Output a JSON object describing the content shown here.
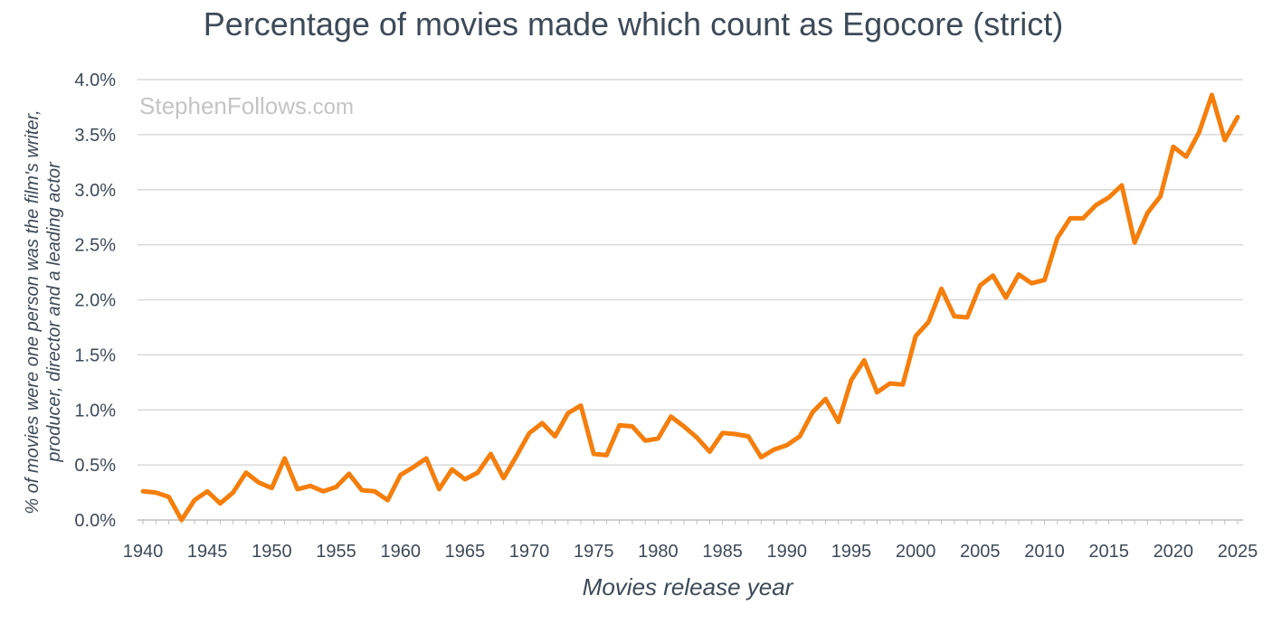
{
  "chart_data": {
    "type": "line",
    "title": "Percentage of movies made which count as Egocore (strict)",
    "watermark_main": "StephenFollows",
    "watermark_suffix": ".com",
    "xlabel": "Movies release year",
    "ylabel_line1": "% of  movies were one person was the film's writer,",
    "ylabel_line2": "producer, director and a leading actor",
    "xlim": [
      1940,
      2025
    ],
    "ylim": [
      0,
      4.0
    ],
    "x_ticks": [
      "1940",
      "1945",
      "1950",
      "1955",
      "1960",
      "1965",
      "1970",
      "1975",
      "1980",
      "1985",
      "1990",
      "1995",
      "2000",
      "2005",
      "2010",
      "2015",
      "2020",
      "2025"
    ],
    "y_ticks": [
      "0.0%",
      "0.5%",
      "1.0%",
      "1.5%",
      "2.0%",
      "2.5%",
      "3.0%",
      "3.5%",
      "4.0%"
    ],
    "grid": "horizontal",
    "color": "#f57e0c",
    "series": [
      {
        "x": [
          1940,
          1941,
          1942,
          1943,
          1944,
          1945,
          1946,
          1947,
          1948,
          1949,
          1950,
          1951,
          1952,
          1953,
          1954,
          1955,
          1956,
          1957,
          1958,
          1959,
          1960,
          1961,
          1962,
          1963,
          1964,
          1965,
          1966,
          1967,
          1968,
          1969,
          1970,
          1971,
          1972,
          1973,
          1974,
          1975,
          1976,
          1977,
          1978,
          1979,
          1980,
          1981,
          1982,
          1983,
          1984,
          1985,
          1986,
          1987,
          1988,
          1989,
          1990,
          1991,
          1992,
          1993,
          1994,
          1995,
          1996,
          1997,
          1998,
          1999,
          2000,
          2001,
          2002,
          2003,
          2004,
          2005,
          2006,
          2007,
          2008,
          2009,
          2010,
          2011,
          2012,
          2013,
          2014,
          2015,
          2016,
          2017,
          2018,
          2019,
          2020,
          2021,
          2022,
          2023,
          2024,
          2025
        ],
        "values": [
          0.26,
          0.25,
          0.21,
          0.0,
          0.18,
          0.26,
          0.15,
          0.25,
          0.43,
          0.34,
          0.29,
          0.56,
          0.28,
          0.31,
          0.26,
          0.3,
          0.42,
          0.27,
          0.26,
          0.18,
          0.41,
          0.48,
          0.56,
          0.28,
          0.46,
          0.37,
          0.43,
          0.6,
          0.38,
          0.58,
          0.79,
          0.88,
          0.76,
          0.97,
          1.04,
          0.6,
          0.59,
          0.86,
          0.85,
          0.72,
          0.74,
          0.94,
          0.85,
          0.75,
          0.62,
          0.79,
          0.78,
          0.76,
          0.57,
          0.64,
          0.68,
          0.76,
          0.98,
          1.1,
          0.89,
          1.27,
          1.45,
          1.16,
          1.24,
          1.23,
          1.67,
          1.8,
          2.1,
          1.85,
          1.84,
          2.13,
          2.22,
          2.02,
          2.23,
          2.15,
          2.18,
          2.56,
          2.74,
          2.74,
          2.86,
          2.93,
          3.04,
          2.52,
          2.79,
          2.94,
          3.39,
          3.3,
          3.52,
          3.86,
          3.45,
          3.66
        ]
      }
    ]
  }
}
